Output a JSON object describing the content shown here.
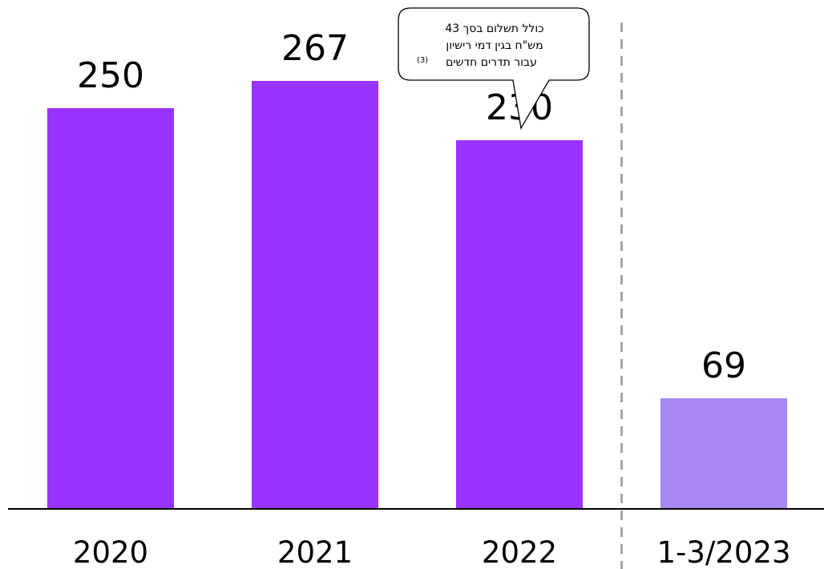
{
  "chart_data": {
    "type": "bar",
    "categories": [
      "2020",
      "2021",
      "2022",
      "1-3/2023"
    ],
    "values": [
      250,
      267,
      230,
      69
    ],
    "data_labels": [
      "250",
      "267",
      "230",
      "69"
    ],
    "bar_colors": [
      "#9933ff",
      "#9933ff",
      "#9933ff",
      "#a686f0"
    ],
    "ylim": [
      0,
      300
    ],
    "grid": false,
    "legend": "none",
    "title": "",
    "xlabel": "",
    "ylabel": "",
    "separator": {
      "between": [
        "2022",
        "1-3/2023"
      ],
      "style": "dashed",
      "color": "#a6a6a6"
    },
    "annotation": {
      "category": "2022",
      "lines": [
        "כולל תשלום בסך 43",
        "מש\"ח בגין דמי רישיון",
        "עבור תדרים חדשים"
      ],
      "footnote": "(3)"
    }
  },
  "colors": {
    "baseline": "#000000",
    "text": "#000000"
  }
}
